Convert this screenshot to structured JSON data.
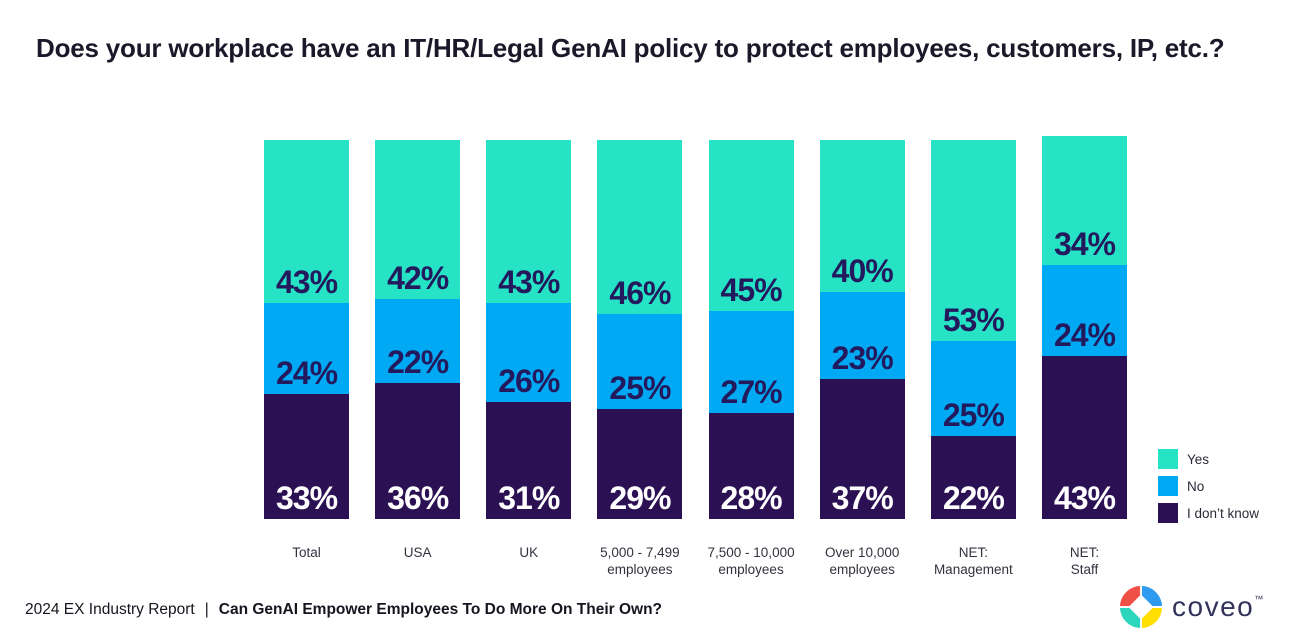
{
  "title": "Does your workplace have an IT/HR/Legal GenAI policy to protect employees, customers, IP, etc.?",
  "footer": {
    "report": "2024 EX Industry Report",
    "separator": "|",
    "question": "Can GenAI Empower Employees To Do More On Their Own?"
  },
  "logo": {
    "text": "coveo",
    "tm": "™"
  },
  "colors": {
    "yes": "#26E3C6",
    "no": "#00A9F4",
    "dont_know": "#2B1153",
    "label_on_light": "#231A5E",
    "label_on_dark": "#FFFFFF"
  },
  "chart_data": {
    "type": "bar",
    "stacked": true,
    "orientation": "vertical",
    "unit": "%",
    "ylim": [
      0,
      100
    ],
    "grid": false,
    "legend_position": "right",
    "categories": [
      "Total",
      "USA",
      "UK",
      "5,000 - 7,499 employees",
      "7,500 - 10,000 employees",
      "Over 10,000 employees",
      "NET: Management",
      "NET: Staff"
    ],
    "category_lines": [
      [
        "Total"
      ],
      [
        "USA"
      ],
      [
        "UK"
      ],
      [
        "5,000 - 7,499",
        "employees"
      ],
      [
        "7,500 - 10,000",
        "employees"
      ],
      [
        "Over 10,000",
        "employees"
      ],
      [
        "NET:",
        "Management"
      ],
      [
        "NET:",
        "Staff"
      ]
    ],
    "series": [
      {
        "name": "Yes",
        "color": "#26E3C6",
        "label_color": "#231A5E",
        "values": [
          43,
          42,
          43,
          46,
          45,
          40,
          53,
          34
        ]
      },
      {
        "name": "No",
        "color": "#00A9F4",
        "label_color": "#231A5E",
        "values": [
          24,
          22,
          26,
          25,
          27,
          23,
          25,
          24
        ]
      },
      {
        "name": "I don’t know",
        "color": "#2B1153",
        "label_color": "#FFFFFF",
        "values": [
          33,
          36,
          31,
          29,
          28,
          37,
          22,
          43
        ]
      }
    ]
  }
}
